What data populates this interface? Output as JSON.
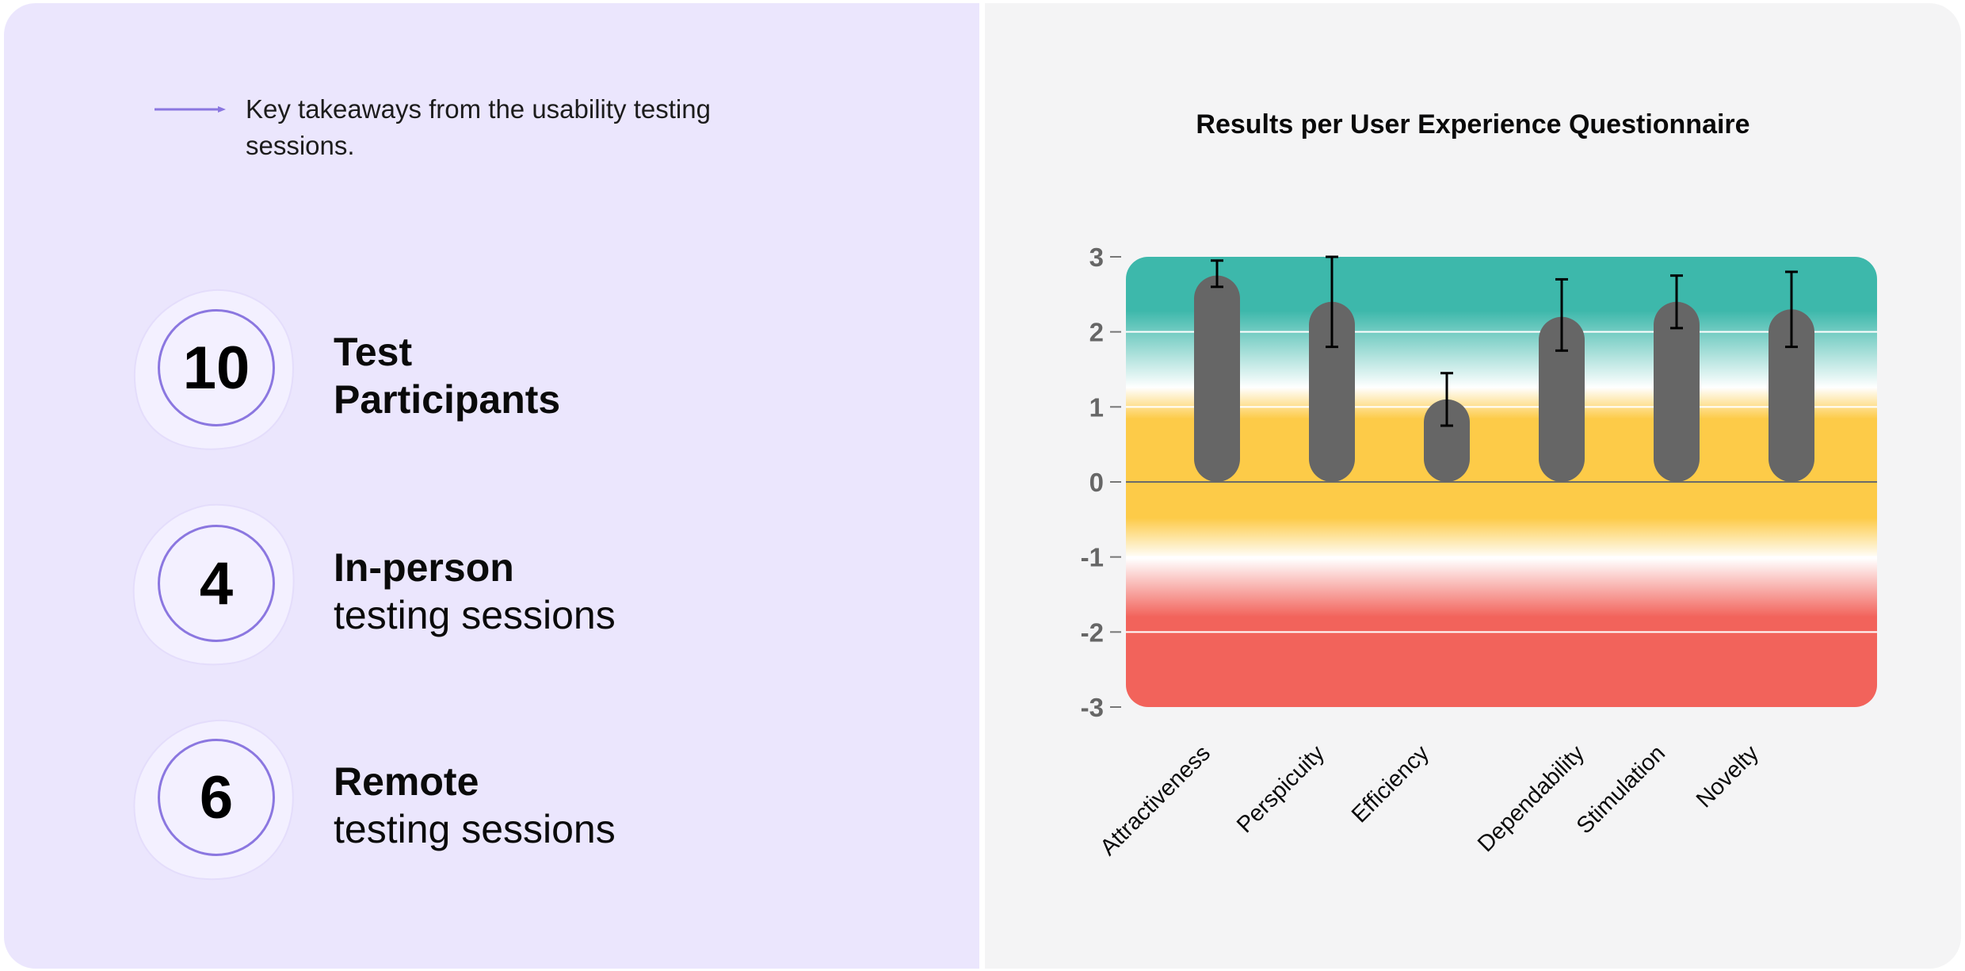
{
  "intro": {
    "text": "Key takeaways from the usability testing sessions."
  },
  "stats": [
    {
      "number": "10",
      "bold": "Test",
      "line2": "Participants",
      "line2_bold": true
    },
    {
      "number": "4",
      "bold": "In-person",
      "line2": "testing sessions",
      "line2_bold": false
    },
    {
      "number": "6",
      "bold": "Remote",
      "line2": "testing sessions",
      "line2_bold": false
    }
  ],
  "colors": {
    "accent": "#8b77e0",
    "excellent": "#3db8ab",
    "average": "#fdcb48",
    "bad": "#f2635b",
    "bar": "#666666"
  },
  "chart_data": {
    "type": "bar",
    "title": "Results per User Experience Questionnaire",
    "categories": [
      "Attractiveness",
      "Perspicuity",
      "Efficiency",
      "Dependability",
      "Stimulation",
      "Novelty"
    ],
    "values": [
      2.75,
      2.4,
      1.1,
      2.2,
      2.4,
      2.3
    ],
    "error_low": [
      2.6,
      1.8,
      0.75,
      1.75,
      2.05,
      1.8
    ],
    "error_high": [
      2.95,
      3.0,
      1.45,
      2.7,
      2.75,
      2.8
    ],
    "ylim": [
      -3,
      3
    ],
    "yticks": [
      "3",
      "2",
      "1",
      "0",
      "-1",
      "-2",
      "-3"
    ],
    "ytick_values": [
      3,
      2,
      1,
      0,
      -1,
      -2,
      -3
    ],
    "xlabel": "",
    "ylabel": "",
    "grid": true
  }
}
